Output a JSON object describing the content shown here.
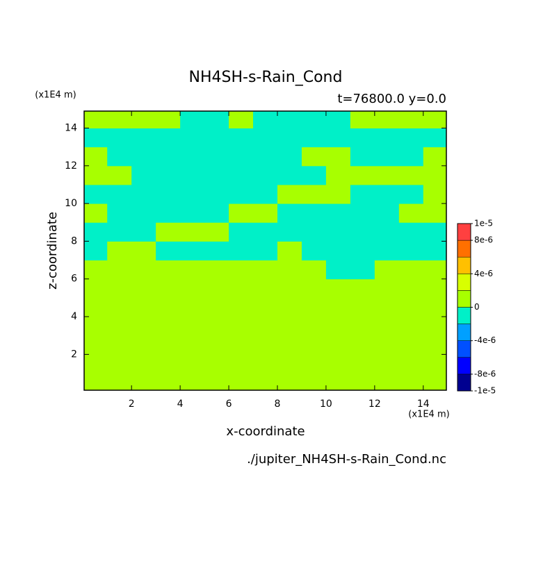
{
  "chart_data": {
    "type": "contour",
    "title": "NH4SH-s-Rain_Cond",
    "subtitle": "t=76800.0 y=0.0",
    "x_label": "x-coordinate",
    "y_label": "z-coordinate",
    "x_unit": "(x1E4 m)",
    "y_unit": "(x1E4 m)",
    "source": "./jupiter_NH4SH-s-Rain_Cond.nc",
    "xlim": [
      0.05,
      14.95
    ],
    "ylim": [
      0.1,
      14.9
    ],
    "xticks": [
      2,
      4,
      6,
      8,
      10,
      12,
      14
    ],
    "yticks": [
      2,
      4,
      6,
      8,
      10,
      12,
      14
    ],
    "x": [
      0.5,
      1.5,
      2.5,
      3.5,
      4.5,
      5.5,
      6.5,
      7.5,
      8.5,
      9.5,
      10.5,
      11.5,
      12.5,
      13.5,
      14.5
    ],
    "y": [
      0.5,
      1.5,
      2.5,
      3.5,
      4.5,
      5.5,
      6.5,
      7.5,
      8.5,
      9.5,
      10.5,
      11.5,
      12.5,
      13.5,
      14.5
    ],
    "z": [
      [
        1e-06,
        1e-06,
        1e-06,
        1e-06,
        1e-06,
        1e-06,
        1e-06,
        1e-06,
        1e-06,
        1e-06,
        1e-06,
        1e-06,
        1e-06,
        1e-06,
        1e-06
      ],
      [
        1e-06,
        1e-06,
        1e-06,
        1e-06,
        1e-06,
        1e-06,
        1e-06,
        1e-06,
        1e-06,
        1e-06,
        1e-06,
        1e-06,
        1e-06,
        1e-06,
        1e-06
      ],
      [
        1e-06,
        1e-06,
        1e-06,
        1e-06,
        1e-06,
        1e-06,
        1e-06,
        1e-06,
        1e-06,
        1e-06,
        1e-06,
        1e-06,
        1e-06,
        1e-06,
        1e-06
      ],
      [
        1e-06,
        1e-06,
        1e-06,
        1e-06,
        1e-06,
        1e-06,
        1e-06,
        1e-06,
        1e-06,
        1e-06,
        1e-06,
        1e-06,
        1e-06,
        1e-06,
        1e-06
      ],
      [
        1e-06,
        1e-06,
        1e-06,
        1e-06,
        1e-06,
        1e-06,
        1e-06,
        1e-06,
        1e-06,
        1e-06,
        1e-06,
        1e-06,
        1e-06,
        1e-06,
        1e-06
      ],
      [
        1e-06,
        1e-06,
        1e-06,
        1e-06,
        1e-06,
        1e-06,
        1e-06,
        1e-06,
        1e-06,
        1e-06,
        1e-06,
        1e-06,
        1e-06,
        1e-06,
        1e-06
      ],
      [
        1e-06,
        1e-06,
        1e-06,
        1e-06,
        1e-06,
        1e-06,
        1e-06,
        1e-06,
        1e-06,
        1e-06,
        -1e-06,
        -1e-06,
        1e-06,
        1e-06,
        1e-06
      ],
      [
        -1e-06,
        1e-06,
        1e-06,
        -1e-06,
        -1e-06,
        -1e-06,
        -1e-06,
        -1e-06,
        1e-06,
        -1e-06,
        -1e-06,
        -1e-06,
        -1e-06,
        -1e-06,
        -1e-06
      ],
      [
        -1e-06,
        -1e-06,
        -1e-06,
        1e-06,
        1e-06,
        1e-06,
        -1e-06,
        -1e-06,
        -1e-06,
        -1e-06,
        -1e-06,
        -1e-06,
        -1e-06,
        -1e-06,
        -1e-06
      ],
      [
        1e-06,
        -1e-06,
        -1e-06,
        -1e-06,
        -1e-06,
        -1e-06,
        1e-06,
        1e-06,
        -1e-06,
        -1e-06,
        -1e-06,
        -1e-06,
        -1e-06,
        1e-06,
        1e-06
      ],
      [
        -1e-06,
        -1e-06,
        -1e-06,
        -1e-06,
        -1e-06,
        -1e-06,
        -1e-06,
        -1e-06,
        1e-06,
        1e-06,
        1e-06,
        -1e-06,
        -1e-06,
        -1e-06,
        1e-06
      ],
      [
        1e-06,
        1e-06,
        -1e-06,
        -1e-06,
        -1e-06,
        -1e-06,
        -1e-06,
        -1e-06,
        -1e-06,
        -1e-06,
        1e-06,
        1e-06,
        1e-06,
        1e-06,
        1e-06
      ],
      [
        1e-06,
        -1e-06,
        -1e-06,
        -1e-06,
        -1e-06,
        -1e-06,
        -1e-06,
        -1e-06,
        -1e-06,
        1e-06,
        1e-06,
        -1e-06,
        -1e-06,
        -1e-06,
        1e-06
      ],
      [
        -1e-06,
        -1e-06,
        -1e-06,
        -1e-06,
        -1e-06,
        -1e-06,
        -1e-06,
        -1e-06,
        -1e-06,
        -1e-06,
        -1e-06,
        -1e-06,
        -1e-06,
        -1e-06,
        -1e-06
      ],
      [
        1e-06,
        1e-06,
        1e-06,
        1e-06,
        -1e-06,
        -1e-06,
        1e-06,
        -1e-06,
        -1e-06,
        -1e-06,
        -1e-06,
        1e-06,
        1e-06,
        1e-06,
        1e-06
      ]
    ],
    "levels": [
      -1e-05,
      -8e-06,
      -6e-06,
      -4e-06,
      -2e-06,
      0,
      2e-06,
      4e-06,
      6e-06,
      8e-06,
      1e-05
    ],
    "colors": [
      "#000090",
      "#0000ff",
      "#0050ff",
      "#00a0ff",
      "#00f0c8",
      "#a8ff00",
      "#d8ff00",
      "#ffc000",
      "#ff7000",
      "#ff4040"
    ],
    "cbticks": [
      {
        "value": 1e-05,
        "label": "1e-5"
      },
      {
        "value": 8e-06,
        "label": "8e-6"
      },
      {
        "value": 4e-06,
        "label": "4e-6"
      },
      0,
      {
        "value": -4e-06,
        "label": "-4e-6"
      },
      {
        "value": -8e-06,
        "label": "-8e-6"
      },
      {
        "value": -1e-05,
        "label": "-1e-5"
      }
    ]
  }
}
